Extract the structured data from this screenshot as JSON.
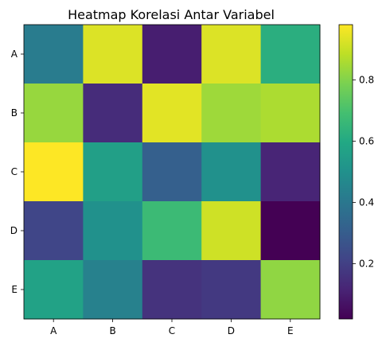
{
  "chart_data": {
    "type": "heatmap",
    "title": "Heatmap Korelasi Antar Variabel",
    "x_categories": [
      "A",
      "B",
      "C",
      "D",
      "E"
    ],
    "y_categories": [
      "A",
      "B",
      "C",
      "D",
      "E"
    ],
    "values": [
      [
        0.42,
        0.93,
        0.1,
        0.93,
        0.62
      ],
      [
        0.83,
        0.14,
        0.94,
        0.84,
        0.86
      ],
      [
        0.98,
        0.56,
        0.31,
        0.5,
        0.12
      ],
      [
        0.22,
        0.5,
        0.67,
        0.91,
        0.02
      ],
      [
        0.57,
        0.44,
        0.16,
        0.18,
        0.82
      ]
    ],
    "colormap": "viridis",
    "vmin": 0.02,
    "vmax": 0.98,
    "colorbar_ticks": [
      0.2,
      0.4,
      0.6,
      0.8
    ],
    "colorbar_tick_labels": [
      "0.2",
      "0.4",
      "0.6",
      "0.8"
    ],
    "grid": false,
    "legend": "colorbar-right"
  }
}
